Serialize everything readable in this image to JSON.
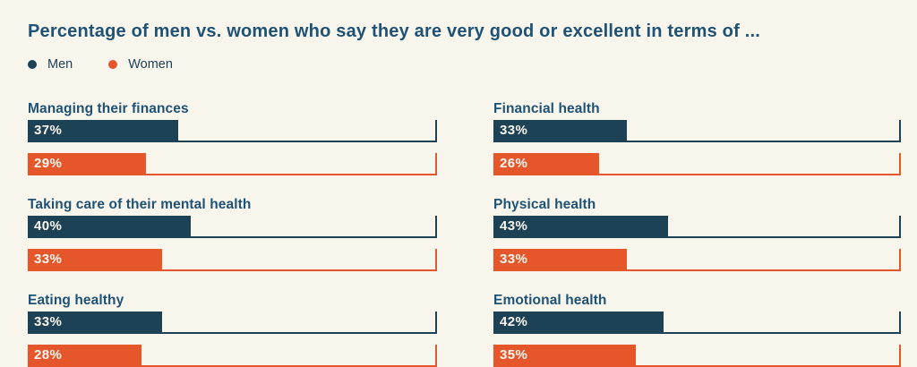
{
  "title": "Percentage of men vs. women who say they are very good or excellent in terms of ...",
  "legend": [
    {
      "label": "Men",
      "color": "#1d4155"
    },
    {
      "label": "Women",
      "color": "#e5562b"
    }
  ],
  "colors": {
    "background": "#f8f5ed",
    "men": "#1d4155",
    "women": "#e5562b",
    "heading_text": "#1f5274",
    "bar_value_text": "#f9f6ee"
  },
  "chart_data": {
    "type": "bar",
    "orientation": "horizontal",
    "title": "Percentage of men vs. women who say they are very good or excellent in terms of ...",
    "unit": "%",
    "xlim": [
      0,
      100
    ],
    "grid": false,
    "legend_position": "top-left",
    "categories": [
      "Managing their finances",
      "Taking care of their mental health",
      "Eating healthy",
      "Financial health",
      "Physical health",
      "Emotional health"
    ],
    "series": [
      {
        "name": "Men",
        "values": [
          37,
          40,
          33,
          33,
          43,
          42
        ]
      },
      {
        "name": "Women",
        "values": [
          29,
          33,
          28,
          26,
          33,
          35
        ]
      }
    ],
    "groups": [
      {
        "label": "Managing their finances",
        "men": 37,
        "women": 29,
        "column": "left"
      },
      {
        "label": "Taking care of their mental health",
        "men": 40,
        "women": 33,
        "column": "left"
      },
      {
        "label": "Eating healthy",
        "men": 33,
        "women": 28,
        "column": "left"
      },
      {
        "label": "Financial health",
        "men": 33,
        "women": 26,
        "column": "right"
      },
      {
        "label": "Physical health",
        "men": 43,
        "women": 33,
        "column": "right"
      },
      {
        "label": "Emotional health",
        "men": 42,
        "women": 35,
        "column": "right"
      }
    ]
  }
}
